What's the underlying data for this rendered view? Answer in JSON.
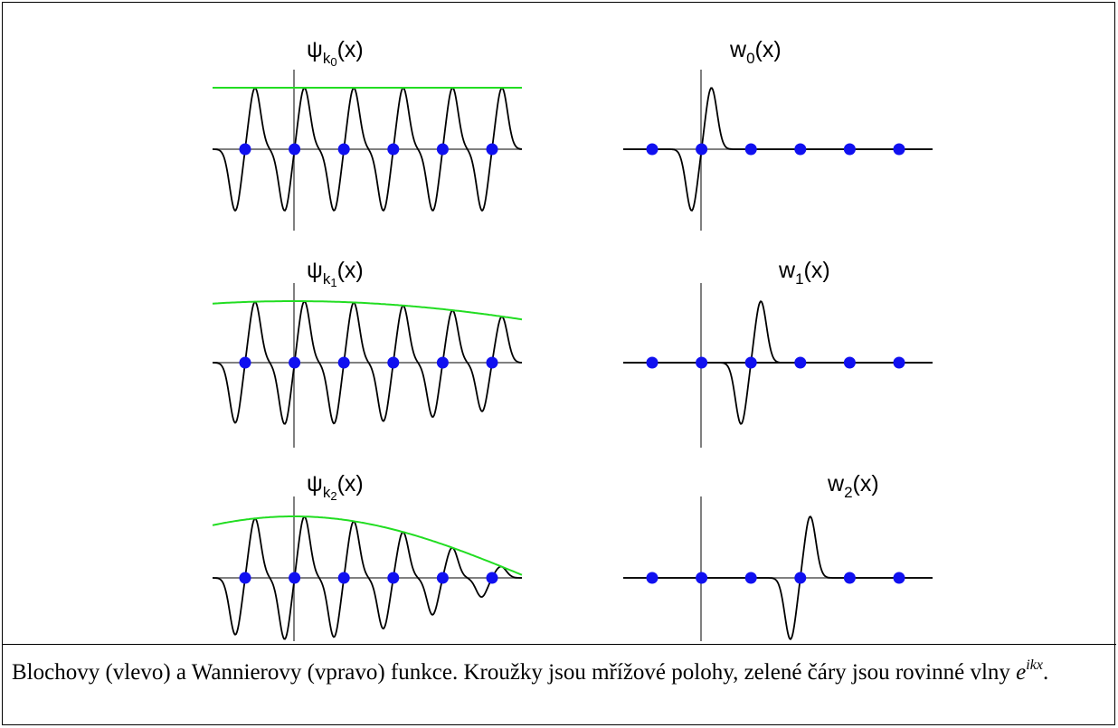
{
  "figure": {
    "panels": [
      {
        "id": "bloch-k0",
        "symbol": "ψ",
        "sub": "k",
        "subsub": "0",
        "arg": "(x)",
        "type": "bloch",
        "envelope": "constant"
      },
      {
        "id": "wannier-0",
        "symbol": "w",
        "sub": "0",
        "subsub": "",
        "arg": "(x)",
        "type": "wannier",
        "site": 1
      },
      {
        "id": "bloch-k1",
        "symbol": "ψ",
        "sub": "k",
        "subsub": "1",
        "arg": "(x)",
        "type": "bloch",
        "envelope": "slow-cosine"
      },
      {
        "id": "wannier-1",
        "symbol": "w",
        "sub": "1",
        "subsub": "",
        "arg": "(x)",
        "type": "wannier",
        "site": 2
      },
      {
        "id": "bloch-k2",
        "symbol": "ψ",
        "sub": "k",
        "subsub": "2",
        "arg": "(x)",
        "type": "bloch",
        "envelope": "cosine"
      },
      {
        "id": "wannier-2",
        "symbol": "w",
        "sub": "2",
        "subsub": "",
        "arg": "(x)",
        "type": "wannier",
        "site": 3
      }
    ],
    "lattice_sites": 6,
    "colors": {
      "envelope": "#22dd22",
      "site": "#1010f0",
      "curve": "#000000",
      "axis": "#808080"
    }
  },
  "caption": {
    "text": "Blochovy (vlevo) a Wannierovy (vpravo) funkce. Kroužky jsou mřížové polohy, zelené čáry jsou rovinné vlny ",
    "base": "e",
    "exponent": "ikx",
    "end": "."
  }
}
